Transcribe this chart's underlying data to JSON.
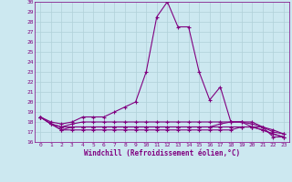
{
  "xlabel": "Windchill (Refroidissement éolien,°C)",
  "bg_color": "#cce8f0",
  "line_color": "#800080",
  "grid_color": "#b0d0d8",
  "xlim": [
    -0.5,
    23.5
  ],
  "ylim": [
    16,
    30
  ],
  "xticks": [
    0,
    1,
    2,
    3,
    4,
    5,
    6,
    7,
    8,
    9,
    10,
    11,
    12,
    13,
    14,
    15,
    16,
    17,
    18,
    19,
    20,
    21,
    22,
    23
  ],
  "yticks": [
    16,
    17,
    18,
    19,
    20,
    21,
    22,
    23,
    24,
    25,
    26,
    27,
    28,
    29,
    30
  ],
  "series": [
    [
      18.5,
      18.0,
      17.8,
      18.0,
      18.5,
      18.5,
      18.5,
      19.0,
      19.5,
      20.0,
      23.0,
      28.5,
      30.0,
      27.5,
      27.5,
      23.0,
      20.2,
      21.5,
      18.0,
      18.0,
      17.5,
      17.5,
      16.5,
      16.5
    ],
    [
      18.5,
      17.8,
      17.2,
      17.2,
      17.2,
      17.2,
      17.2,
      17.2,
      17.2,
      17.2,
      17.2,
      17.2,
      17.2,
      17.2,
      17.2,
      17.2,
      17.2,
      17.2,
      17.2,
      17.5,
      17.5,
      17.2,
      16.8,
      16.5
    ],
    [
      18.5,
      17.8,
      17.2,
      17.5,
      17.5,
      17.5,
      17.5,
      17.5,
      17.5,
      17.5,
      17.5,
      17.5,
      17.5,
      17.5,
      17.5,
      17.5,
      17.5,
      17.8,
      18.0,
      18.0,
      17.8,
      17.5,
      17.0,
      16.8
    ],
    [
      18.5,
      17.8,
      17.5,
      17.8,
      18.0,
      18.0,
      18.0,
      18.0,
      18.0,
      18.0,
      18.0,
      18.0,
      18.0,
      18.0,
      18.0,
      18.0,
      18.0,
      18.0,
      18.0,
      18.0,
      18.0,
      17.5,
      17.2,
      16.8
    ],
    [
      18.5,
      17.8,
      17.5,
      17.5,
      17.5,
      17.5,
      17.5,
      17.5,
      17.5,
      17.5,
      17.5,
      17.5,
      17.5,
      17.5,
      17.5,
      17.5,
      17.5,
      17.5,
      17.5,
      17.5,
      17.5,
      17.2,
      16.8,
      16.5
    ]
  ]
}
